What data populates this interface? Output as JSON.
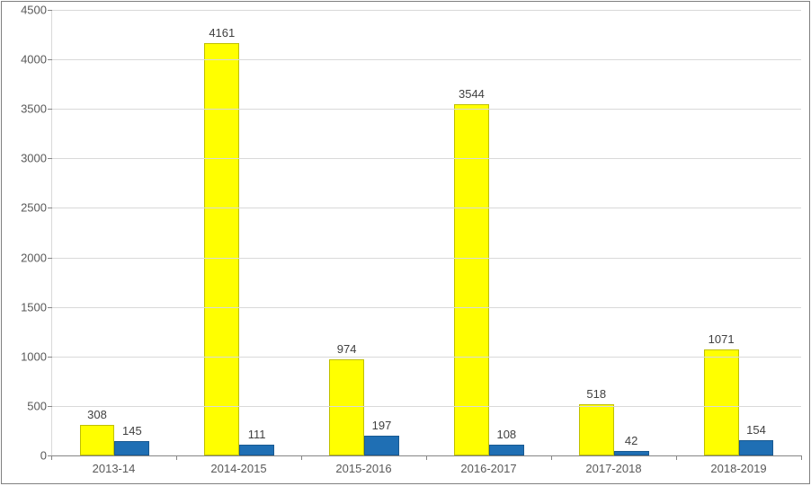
{
  "chart": {
    "type": "bar",
    "background_color": "#ffffff",
    "border_color": "#808080",
    "grid_color": "#d9d9d9",
    "axis_color": "#868686",
    "label_color": "#595959",
    "data_label_color": "#404040",
    "label_fontsize": 13,
    "ylim": [
      0,
      4500
    ],
    "ytick_step": 500,
    "yticks": [
      0,
      500,
      1000,
      1500,
      2000,
      2500,
      3000,
      3500,
      4000,
      4500
    ],
    "categories": [
      "2013-14",
      "2014-2015",
      "2015-2016",
      "2016-2017",
      "2017-2018",
      "2018-2019"
    ],
    "series": [
      {
        "color": "#ffff00",
        "border_color": "#bfbf00",
        "values": [
          308,
          4161,
          974,
          3544,
          518,
          1071
        ]
      },
      {
        "color": "#1f6fb4",
        "border_color": "#1a5a91",
        "values": [
          145,
          111,
          197,
          108,
          42,
          154
        ]
      }
    ],
    "bar_group_width": 0.56,
    "bar_gap_within_group": 0
  }
}
